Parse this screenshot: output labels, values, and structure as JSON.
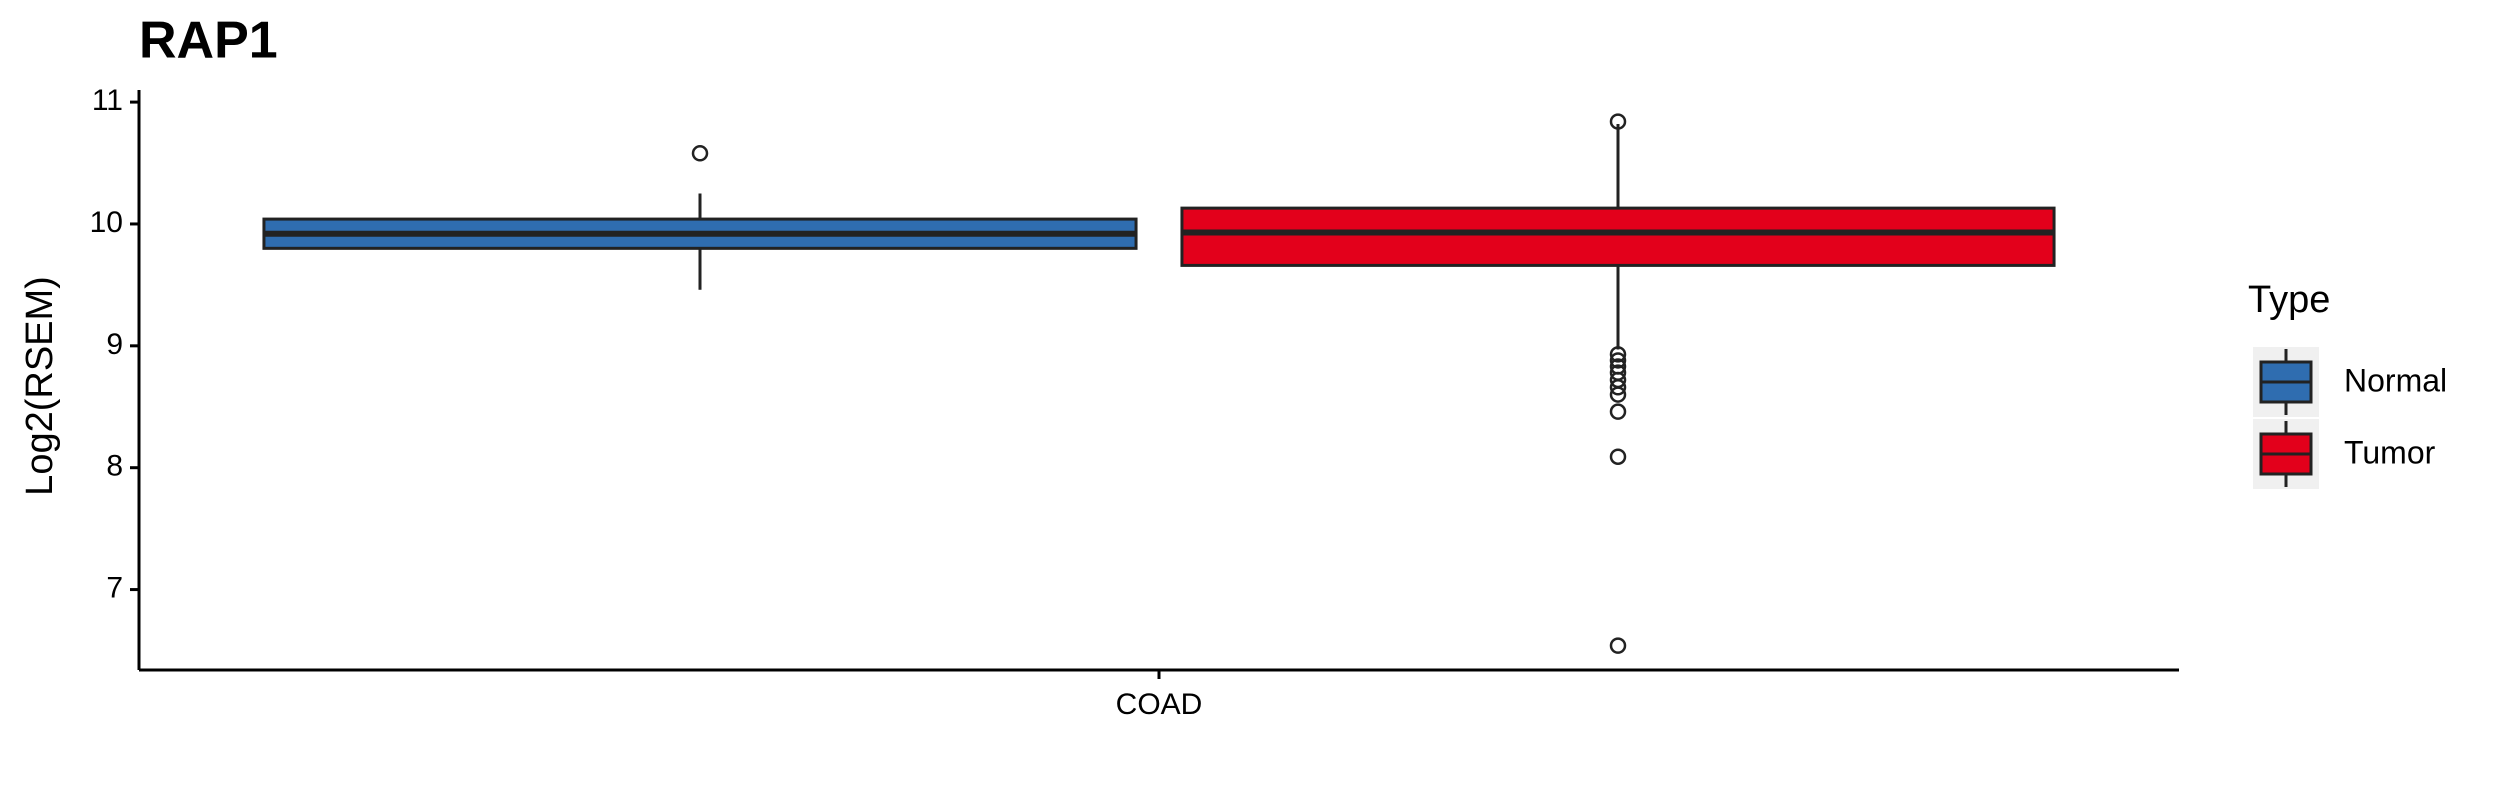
{
  "chart_data": {
    "type": "boxplot",
    "title": "RAP1",
    "y_label": "Log2(RSEM)",
    "categories": [
      "COAD"
    ],
    "ylim": [
      6.34,
      11.05
    ],
    "yticks": [
      7,
      8,
      9,
      10,
      11
    ],
    "legend_title": "Type",
    "legend_position": "right",
    "grid": false,
    "series": [
      {
        "name": "Normal",
        "color": "#2f6db0",
        "stats": {
          "whisker_low": 9.46,
          "q1": 9.8,
          "median": 9.92,
          "q3": 10.04,
          "whisker_high": 10.25
        },
        "outliers": [
          10.58
        ]
      },
      {
        "name": "Tumor",
        "color": "#e3001b",
        "stats": {
          "whisker_low": 8.97,
          "q1": 9.66,
          "median": 9.93,
          "q3": 10.13,
          "whisker_high": 10.82
        },
        "outliers": [
          10.84,
          8.93,
          8.88,
          8.83,
          8.78,
          8.72,
          8.66,
          8.6,
          8.46,
          8.09,
          6.54
        ]
      }
    ]
  }
}
